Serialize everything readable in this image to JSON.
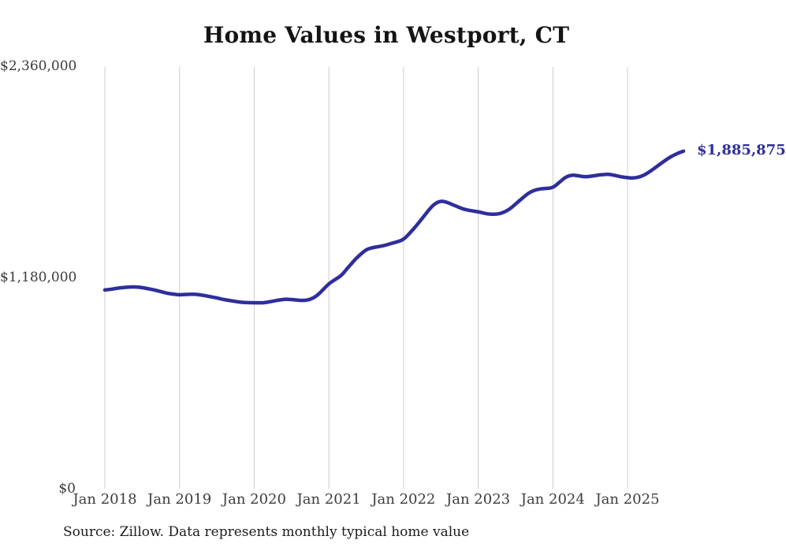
{
  "title": "Home Values in Westport, CT",
  "source_note": "Source: Zillow. Data represents monthly typical home value",
  "end_label": "$1,885,875",
  "colors": {
    "line": "#2e2e9c",
    "grid": "#cdcdcd",
    "axis_text": "#3a3a3a",
    "title_text": "#141414"
  },
  "chart_data": {
    "type": "line",
    "title": "Home Values in Westport, CT",
    "series_name": "Monthly typical home value (USD)",
    "x_start": "2018-01",
    "x_interval": "month",
    "x_end": "2025-10",
    "ylim": [
      0,
      2360000
    ],
    "grid": "vertical-only",
    "legend": "none",
    "final_point_label": "$1,885,875",
    "y_ticks": [
      {
        "value": 0,
        "label": "$0"
      },
      {
        "value": 1180000,
        "label": "$1,180,000"
      },
      {
        "value": 2360000,
        "label": "$2,360,000"
      }
    ],
    "x_ticks": [
      {
        "month_index": 0,
        "label": "Jan 2018"
      },
      {
        "month_index": 12,
        "label": "Jan 2019"
      },
      {
        "month_index": 24,
        "label": "Jan 2020"
      },
      {
        "month_index": 36,
        "label": "Jan 2021"
      },
      {
        "month_index": 48,
        "label": "Jan 2022"
      },
      {
        "month_index": 60,
        "label": "Jan 2023"
      },
      {
        "month_index": 72,
        "label": "Jan 2024"
      },
      {
        "month_index": 84,
        "label": "Jan 2025"
      }
    ],
    "values": [
      1110000,
      1114000,
      1120000,
      1124000,
      1127000,
      1127000,
      1123000,
      1117000,
      1110000,
      1101000,
      1092000,
      1087000,
      1083000,
      1085000,
      1087000,
      1085000,
      1079000,
      1072000,
      1066000,
      1057000,
      1052000,
      1046000,
      1041000,
      1039000,
      1039000,
      1038000,
      1041000,
      1048000,
      1054000,
      1059000,
      1057000,
      1053000,
      1051000,
      1057000,
      1075000,
      1110000,
      1145000,
      1168000,
      1190000,
      1233000,
      1272000,
      1307000,
      1336000,
      1347000,
      1352000,
      1359000,
      1370000,
      1379000,
      1392000,
      1427000,
      1466000,
      1510000,
      1555000,
      1592000,
      1608000,
      1600000,
      1585000,
      1570000,
      1558000,
      1552000,
      1547000,
      1538000,
      1533000,
      1533000,
      1542000,
      1560000,
      1590000,
      1620000,
      1650000,
      1668000,
      1675000,
      1678000,
      1681000,
      1710000,
      1740000,
      1753000,
      1749000,
      1742000,
      1745000,
      1750000,
      1755000,
      1757000,
      1750000,
      1742000,
      1737000,
      1735000,
      1742000,
      1758000,
      1782000,
      1808000,
      1833000,
      1856000,
      1873000,
      1885875
    ]
  }
}
